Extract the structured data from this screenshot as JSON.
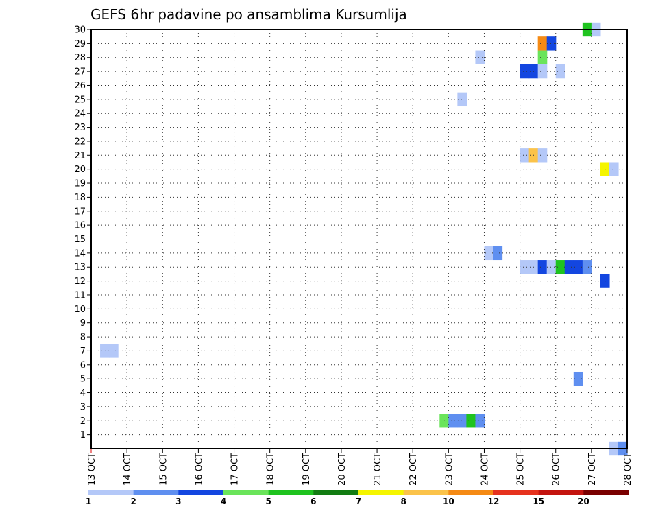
{
  "chart_data": {
    "type": "heatmap",
    "title": "GEFS 6hr padavine po ansamblima Kursumlija",
    "x_tick_labels": [
      "13 OCT",
      "14 OCT",
      "15 OCT",
      "16 OCT",
      "17 OCT",
      "18 OCT",
      "19 OCT",
      "20 OCT",
      "21 OCT",
      "22 OCT",
      "23 OCT",
      "24 OCT",
      "25 OCT",
      "26 OCT",
      "27 OCT",
      "28 OCT"
    ],
    "y_tick_labels": [
      "1",
      "2",
      "3",
      "4",
      "5",
      "6",
      "7",
      "8",
      "9",
      "10",
      "11",
      "12",
      "13",
      "14",
      "15",
      "16",
      "17",
      "18",
      "19",
      "20",
      "21",
      "22",
      "23",
      "24",
      "25",
      "26",
      "27",
      "28",
      "29",
      "30"
    ],
    "xlim_days": [
      13,
      28
    ],
    "ylim": [
      0,
      30
    ],
    "grid": true,
    "colorbar": {
      "labels": [
        "1",
        "2",
        "3",
        "4",
        "5",
        "6",
        "7",
        "8",
        "10",
        "12",
        "15",
        "20"
      ],
      "colors": [
        "#b4c8f8",
        "#5f8ff0",
        "#1346e0",
        "#6ae45a",
        "#1fc31f",
        "#127c12",
        "#f5f500",
        "#fbc34a",
        "#f58a14",
        "#e6321e",
        "#c4140f",
        "#7a0000"
      ]
    },
    "cells": [
      {
        "t": 13.25,
        "member": 7,
        "c": 0
      },
      {
        "t": 13.5,
        "member": 7,
        "c": 0
      },
      {
        "t": 22.75,
        "member": 2,
        "c": 3
      },
      {
        "t": 23.0,
        "member": 2,
        "c": 1
      },
      {
        "t": 23.25,
        "member": 2,
        "c": 1
      },
      {
        "t": 23.5,
        "member": 2,
        "c": 4
      },
      {
        "t": 23.75,
        "member": 2,
        "c": 1
      },
      {
        "t": 26.5,
        "member": 5,
        "c": 1
      },
      {
        "t": 27.5,
        "member": 0,
        "c": 0
      },
      {
        "t": 27.75,
        "member": 0,
        "c": 1
      },
      {
        "t": 27.25,
        "member": 12,
        "c": 2
      },
      {
        "t": 25.0,
        "member": 13,
        "c": 0
      },
      {
        "t": 25.25,
        "member": 13,
        "c": 0
      },
      {
        "t": 25.5,
        "member": 13,
        "c": 2
      },
      {
        "t": 25.75,
        "member": 13,
        "c": 0
      },
      {
        "t": 26.0,
        "member": 13,
        "c": 4
      },
      {
        "t": 26.25,
        "member": 13,
        "c": 2
      },
      {
        "t": 26.5,
        "member": 13,
        "c": 2
      },
      {
        "t": 26.75,
        "member": 13,
        "c": 1
      },
      {
        "t": 24.0,
        "member": 14,
        "c": 0
      },
      {
        "t": 24.25,
        "member": 14,
        "c": 1
      },
      {
        "t": 27.25,
        "member": 20,
        "c": 6
      },
      {
        "t": 27.5,
        "member": 20,
        "c": 0
      },
      {
        "t": 25.0,
        "member": 21,
        "c": 0
      },
      {
        "t": 25.25,
        "member": 21,
        "c": 7
      },
      {
        "t": 25.5,
        "member": 21,
        "c": 0
      },
      {
        "t": 23.25,
        "member": 25,
        "c": 0
      },
      {
        "t": 25.0,
        "member": 27,
        "c": 2
      },
      {
        "t": 25.25,
        "member": 27,
        "c": 2
      },
      {
        "t": 25.5,
        "member": 27,
        "c": 0
      },
      {
        "t": 26.0,
        "member": 27,
        "c": 0
      },
      {
        "t": 23.75,
        "member": 28,
        "c": 0
      },
      {
        "t": 25.5,
        "member": 28,
        "c": 3
      },
      {
        "t": 25.5,
        "member": 29,
        "c": 8
      },
      {
        "t": 25.75,
        "member": 29,
        "c": 2
      },
      {
        "t": 26.75,
        "member": 30,
        "c": 4
      },
      {
        "t": 27.0,
        "member": 30,
        "c": 0
      }
    ]
  }
}
